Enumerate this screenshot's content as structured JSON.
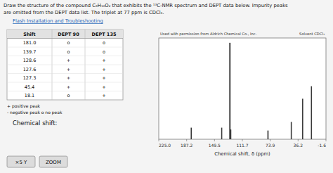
{
  "chart_data": {
    "type": "bar",
    "title": "Draw the structure of the compound C₉H₁₀O₂ that exhibits the ¹³C-NMR spectrum and DEPT data below. Impurity peaks",
    "subtitle": "are omitted from the DEPT data list. The triplet at 77 ppm is CDCl₃.",
    "x_label": "Chemical shift, δ (ppm)",
    "annotations": [
      "Flash Installation and Troubleshooting",
      "Used with permission from Aldrich Chemical Co., Inc.",
      "Solvent CDCl₃",
      "+ positive peak",
      "- negative peak   o no peak",
      "Chemical shift:",
      "×5 Y",
      "ZOOM"
    ],
    "table": {
      "headers": [
        "Shift",
        "DEPT 90",
        "DEPT 135"
      ],
      "rows": [
        [
          "181.0",
          "o",
          "o"
        ],
        [
          "139.7",
          "o",
          "o"
        ],
        [
          "128.6",
          "+",
          "+"
        ],
        [
          "127.6",
          "+",
          "+"
        ],
        [
          "127.3",
          "+",
          "+"
        ],
        [
          "45.4",
          "+",
          "+"
        ],
        [
          "18.1",
          "o",
          "+"
        ]
      ]
    },
    "series": [
      {
        "color": "#3a3a3a",
        "x": [
          181.0,
          139.7,
          128.6,
          127.6,
          127.3,
          45.4,
          18.1,
          76.5,
          77.0,
          77.5,
          30.0
        ],
        "values": [
          0.12,
          0.12,
          1.0,
          0.1,
          0.1,
          0.18,
          0.55,
          0.09,
          0.09,
          0.09,
          0.42
        ],
        "widths": [
          1.5,
          1.5,
          1.8,
          1.2,
          1.2,
          1.5,
          1.5,
          0.7,
          0.7,
          0.7,
          1.5
        ]
      }
    ],
    "xlim": [
      225.0,
      -1.6
    ],
    "xticks": [
      {
        "value": 225.0,
        "label": "225.0"
      },
      187.2,
      149.5,
      111.7,
      73.9,
      36.2,
      -1.6
    ],
    "ylim": [
      0,
      1.05
    ],
    "tick_labels": "x",
    "grid": false
  }
}
